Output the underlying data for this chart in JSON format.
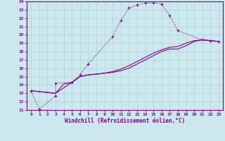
{
  "xlabel": "Windchill (Refroidissement éolien,°C)",
  "bg_color": "#cce8ee",
  "line_color": "#800080",
  "xlim": [
    -0.5,
    23.5
  ],
  "ylim": [
    11,
    24
  ],
  "xticks": [
    0,
    1,
    2,
    3,
    4,
    5,
    6,
    7,
    8,
    9,
    10,
    11,
    12,
    13,
    14,
    15,
    16,
    17,
    18,
    19,
    20,
    21,
    22,
    23
  ],
  "yticks": [
    11,
    12,
    13,
    14,
    15,
    16,
    17,
    18,
    19,
    20,
    21,
    22,
    23,
    24
  ],
  "grid_color": "#aed4d4",
  "curve1_x": [
    0,
    1,
    3,
    3,
    5,
    6,
    7,
    10,
    11,
    12,
    13,
    14,
    15,
    16,
    17,
    18,
    21,
    22,
    23
  ],
  "curve1_y": [
    13.3,
    11.1,
    12.7,
    14.2,
    14.3,
    15.2,
    16.5,
    19.8,
    21.7,
    23.2,
    23.6,
    23.8,
    23.8,
    23.7,
    22.3,
    20.5,
    19.4,
    19.3,
    19.2
  ],
  "curve2_x": [
    0,
    3,
    4,
    5,
    6,
    7,
    8,
    9,
    10,
    11,
    12,
    13,
    14,
    15,
    16,
    17,
    18,
    19,
    20,
    21,
    22,
    23
  ],
  "curve2_y": [
    13.3,
    13.0,
    14.1,
    14.3,
    15.0,
    15.2,
    15.3,
    15.4,
    15.5,
    15.7,
    16.0,
    16.5,
    17.0,
    17.5,
    18.0,
    18.3,
    18.3,
    18.7,
    19.2,
    19.4,
    19.3,
    19.2
  ],
  "curve3_x": [
    0,
    3,
    5,
    6,
    7,
    8,
    9,
    10,
    11,
    12,
    13,
    14,
    15,
    16,
    17,
    18,
    19,
    20,
    21,
    22,
    23
  ],
  "curve3_y": [
    13.3,
    13.0,
    14.3,
    15.0,
    15.2,
    15.3,
    15.4,
    15.6,
    15.9,
    16.3,
    16.8,
    17.3,
    17.8,
    18.2,
    18.5,
    18.6,
    19.0,
    19.3,
    19.4,
    19.3,
    19.2
  ]
}
